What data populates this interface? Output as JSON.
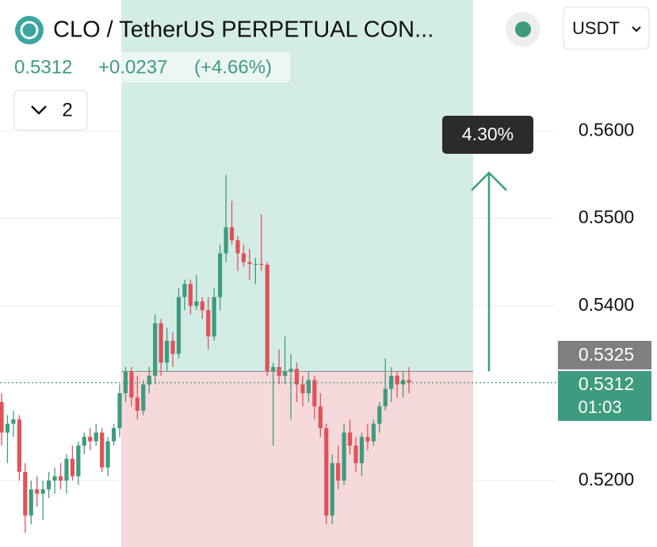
{
  "header": {
    "title": "CLO / TetherUS PERPETUAL CON...",
    "last": "0.5312",
    "change": "+0.0237",
    "change_pct": "(+4.66%)",
    "collapse_count": "2",
    "currency": "USDT"
  },
  "chart_data": {
    "type": "candlestick",
    "up_color": "#3e9b7f",
    "down_color": "#e0525a",
    "series": [
      {
        "open": [
          0.529,
          0.5255,
          0.5265,
          0.527,
          0.521,
          0.516,
          0.519,
          0.5185,
          0.519,
          0.52,
          0.5205,
          0.52,
          0.5225,
          0.5205,
          0.524,
          0.525,
          0.5245,
          0.5255,
          0.5215,
          0.5245,
          0.526,
          0.53,
          0.5325,
          0.5295,
          0.528,
          0.531,
          0.532,
          0.538,
          0.5335,
          0.536,
          0.5345,
          0.541,
          0.5425,
          0.54,
          0.5405,
          0.5395,
          0.5365,
          0.541,
          0.546,
          0.549,
          0.5475,
          0.546,
          0.545,
          0.5448,
          0.5448,
          0.5447,
          0.5325,
          0.533,
          0.532,
          0.5325,
          0.5328,
          0.531,
          0.53,
          0.5315,
          0.5285,
          0.526,
          0.516,
          0.522,
          0.52,
          0.5255,
          0.524,
          0.522,
          0.525,
          0.5245,
          0.5265,
          0.5285,
          0.5305,
          0.532,
          0.531,
          0.5315
        ],
        "high": [
          0.53,
          0.5275,
          0.528,
          0.5275,
          0.522,
          0.52,
          0.5205,
          0.52,
          0.521,
          0.5215,
          0.522,
          0.523,
          0.524,
          0.5245,
          0.5255,
          0.526,
          0.5265,
          0.526,
          0.525,
          0.5265,
          0.531,
          0.533,
          0.533,
          0.532,
          0.5315,
          0.533,
          0.539,
          0.5385,
          0.5375,
          0.537,
          0.542,
          0.543,
          0.543,
          0.5435,
          0.541,
          0.541,
          0.542,
          0.547,
          0.555,
          0.552,
          0.548,
          0.547,
          0.5465,
          0.5455,
          0.5505,
          0.545,
          0.5335,
          0.535,
          0.5365,
          0.5345,
          0.5335,
          0.532,
          0.5325,
          0.532,
          0.53,
          0.5265,
          0.523,
          0.524,
          0.5265,
          0.527,
          0.525,
          0.5255,
          0.5265,
          0.527,
          0.529,
          0.534,
          0.533,
          0.5325,
          0.5325,
          0.533
        ],
        "low": [
          0.524,
          0.522,
          0.525,
          0.52,
          0.514,
          0.515,
          0.517,
          0.5155,
          0.518,
          0.5185,
          0.519,
          0.5185,
          0.52,
          0.5195,
          0.523,
          0.5235,
          0.524,
          0.521,
          0.5205,
          0.524,
          0.525,
          0.529,
          0.5285,
          0.527,
          0.5275,
          0.53,
          0.531,
          0.532,
          0.5325,
          0.533,
          0.534,
          0.5395,
          0.539,
          0.5395,
          0.5385,
          0.535,
          0.536,
          0.5395,
          0.545,
          0.547,
          0.544,
          0.5445,
          0.543,
          0.5425,
          0.544,
          0.532,
          0.524,
          0.531,
          0.531,
          0.527,
          0.529,
          0.5285,
          0.529,
          0.527,
          0.525,
          0.515,
          0.515,
          0.519,
          0.5195,
          0.523,
          0.521,
          0.5205,
          0.5235,
          0.524,
          0.5255,
          0.528,
          0.529,
          0.5295,
          0.5295,
          0.53
        ],
        "close": [
          0.5255,
          0.5265,
          0.527,
          0.521,
          0.516,
          0.519,
          0.5185,
          0.519,
          0.52,
          0.5205,
          0.52,
          0.5225,
          0.5205,
          0.524,
          0.525,
          0.5245,
          0.5255,
          0.5215,
          0.5245,
          0.526,
          0.53,
          0.5325,
          0.5295,
          0.528,
          0.531,
          0.532,
          0.538,
          0.5335,
          0.536,
          0.5345,
          0.541,
          0.5425,
          0.54,
          0.5405,
          0.5395,
          0.5365,
          0.541,
          0.546,
          0.549,
          0.5475,
          0.546,
          0.545,
          0.5448,
          0.5448,
          0.5447,
          0.5325,
          0.533,
          0.532,
          0.5325,
          0.5328,
          0.531,
          0.53,
          0.5315,
          0.5285,
          0.526,
          0.516,
          0.522,
          0.52,
          0.5255,
          0.524,
          0.522,
          0.525,
          0.5245,
          0.5265,
          0.5285,
          0.5305,
          0.532,
          0.531,
          0.5315,
          0.5312
        ]
      }
    ],
    "ylim": [
      0.5124,
      0.575
    ],
    "yticks": [
      {
        "value": 0.56,
        "label": "0.5600"
      },
      {
        "value": 0.55,
        "label": "0.5500"
      },
      {
        "value": 0.54,
        "label": "0.5400"
      },
      {
        "value": 0.52,
        "label": "0.5200"
      }
    ],
    "grid": true,
    "entry_price": {
      "value": 0.5325,
      "label": "0.5325"
    },
    "last_price": {
      "value": 0.5312,
      "label": "0.5312"
    },
    "countdown": "01:03",
    "move_label": "4.30%"
  }
}
